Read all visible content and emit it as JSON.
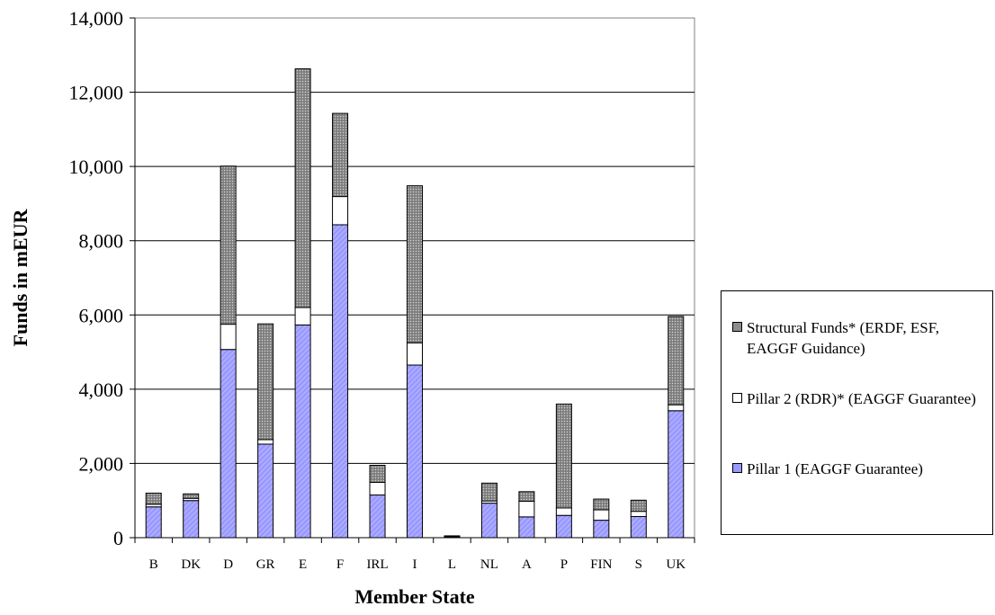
{
  "chart_data": {
    "type": "bar",
    "stacked": true,
    "xlabel": "Member State",
    "ylabel": "Funds in mEUR",
    "ylim": [
      0,
      14000
    ],
    "yticks": [
      0,
      2000,
      4000,
      6000,
      8000,
      10000,
      12000,
      14000
    ],
    "ytick_labels": [
      "0",
      "2,000",
      "4,000",
      "6,000",
      "8,000",
      "10,000",
      "12,000",
      "14,000"
    ],
    "grid": "horizontal",
    "legend_position": "right",
    "categories": [
      "B",
      "DK",
      "D",
      "GR",
      "E",
      "F",
      "IRL",
      "I",
      "L",
      "NL",
      "A",
      "P",
      "FIN",
      "S",
      "UK"
    ],
    "series": [
      {
        "name": "Pillar 1 (EAGGF Guarantee)",
        "color": "#9999ff",
        "values": [
          830,
          1000,
          5070,
          2520,
          5730,
          8430,
          1150,
          4650,
          20,
          930,
          560,
          600,
          470,
          570,
          3420
        ]
      },
      {
        "name": "Pillar 2 (RDR)* (EAGGF Guarantee)",
        "color": "#ffffff",
        "values": [
          70,
          60,
          680,
          120,
          470,
          760,
          340,
          600,
          10,
          60,
          420,
          200,
          280,
          140,
          160
        ]
      },
      {
        "name": "Structural Funds* (ERDF, ESF, EAGGF Guidance)",
        "color": "#999999",
        "values": [
          300,
          120,
          4260,
          3120,
          6430,
          2240,
          460,
          4230,
          20,
          480,
          260,
          2800,
          290,
          300,
          2380
        ]
      }
    ]
  }
}
